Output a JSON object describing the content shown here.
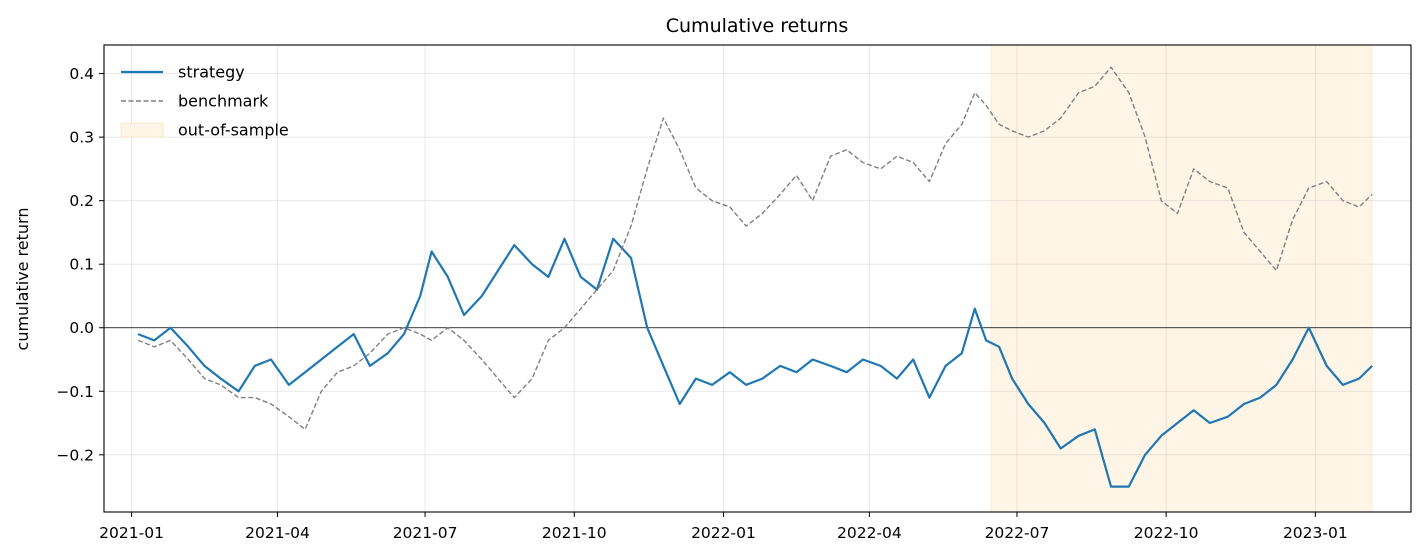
{
  "chart_data": {
    "type": "line",
    "title": "Cumulative returns",
    "xlabel": "",
    "ylabel": "cumulative return",
    "xlim": [
      "2020-12-15",
      "2023-03-01"
    ],
    "ylim": [
      -0.29,
      0.445
    ],
    "x_tick_labels": [
      "2021-01",
      "2021-04",
      "2021-07",
      "2021-10",
      "2022-01",
      "2022-04",
      "2022-07",
      "2022-10",
      "2023-01"
    ],
    "y_tick_labels": [
      "−0.2",
      "−0.1",
      "0.0",
      "0.1",
      "0.2",
      "0.3",
      "0.4"
    ],
    "grid": true,
    "legend_position": "top-left",
    "zero_line": true,
    "shaded_region": {
      "label": "out-of-sample",
      "start": "2022-06-15",
      "end": "2023-02-05",
      "color": "#fff5e6"
    },
    "series": [
      {
        "name": "strategy",
        "color": "#1f77b4",
        "style": "solid",
        "points": [
          [
            "2021-01-05",
            -0.01
          ],
          [
            "2021-01-15",
            -0.02
          ],
          [
            "2021-01-25",
            0.0
          ],
          [
            "2021-02-05",
            -0.03
          ],
          [
            "2021-02-15",
            -0.06
          ],
          [
            "2021-02-25",
            -0.08
          ],
          [
            "2021-03-08",
            -0.1
          ],
          [
            "2021-03-18",
            -0.06
          ],
          [
            "2021-03-28",
            -0.05
          ],
          [
            "2021-04-08",
            -0.09
          ],
          [
            "2021-04-18",
            -0.07
          ],
          [
            "2021-04-28",
            -0.05
          ],
          [
            "2021-05-08",
            -0.03
          ],
          [
            "2021-05-18",
            -0.01
          ],
          [
            "2021-05-28",
            -0.06
          ],
          [
            "2021-06-08",
            -0.04
          ],
          [
            "2021-06-18",
            -0.01
          ],
          [
            "2021-06-28",
            0.05
          ],
          [
            "2021-07-05",
            0.12
          ],
          [
            "2021-07-15",
            0.08
          ],
          [
            "2021-07-25",
            0.02
          ],
          [
            "2021-08-05",
            0.05
          ],
          [
            "2021-08-15",
            0.09
          ],
          [
            "2021-08-25",
            0.13
          ],
          [
            "2021-09-05",
            0.1
          ],
          [
            "2021-09-15",
            0.08
          ],
          [
            "2021-09-25",
            0.14
          ],
          [
            "2021-10-05",
            0.08
          ],
          [
            "2021-10-15",
            0.06
          ],
          [
            "2021-10-25",
            0.14
          ],
          [
            "2021-11-05",
            0.11
          ],
          [
            "2021-11-15",
            0.0
          ],
          [
            "2021-11-25",
            -0.06
          ],
          [
            "2021-12-05",
            -0.12
          ],
          [
            "2021-12-15",
            -0.08
          ],
          [
            "2021-12-25",
            -0.09
          ],
          [
            "2022-01-05",
            -0.07
          ],
          [
            "2022-01-15",
            -0.09
          ],
          [
            "2022-01-25",
            -0.08
          ],
          [
            "2022-02-05",
            -0.06
          ],
          [
            "2022-02-15",
            -0.07
          ],
          [
            "2022-02-25",
            -0.05
          ],
          [
            "2022-03-08",
            -0.06
          ],
          [
            "2022-03-18",
            -0.07
          ],
          [
            "2022-03-28",
            -0.05
          ],
          [
            "2022-04-08",
            -0.06
          ],
          [
            "2022-04-18",
            -0.08
          ],
          [
            "2022-04-28",
            -0.05
          ],
          [
            "2022-05-08",
            -0.11
          ],
          [
            "2022-05-18",
            -0.06
          ],
          [
            "2022-05-28",
            -0.04
          ],
          [
            "2022-06-05",
            0.03
          ],
          [
            "2022-06-12",
            -0.02
          ],
          [
            "2022-06-20",
            -0.03
          ],
          [
            "2022-06-28",
            -0.08
          ],
          [
            "2022-07-08",
            -0.12
          ],
          [
            "2022-07-18",
            -0.15
          ],
          [
            "2022-07-28",
            -0.19
          ],
          [
            "2022-08-08",
            -0.17
          ],
          [
            "2022-08-18",
            -0.16
          ],
          [
            "2022-08-28",
            -0.25
          ],
          [
            "2022-09-08",
            -0.25
          ],
          [
            "2022-09-18",
            -0.2
          ],
          [
            "2022-09-28",
            -0.17
          ],
          [
            "2022-10-08",
            -0.15
          ],
          [
            "2022-10-18",
            -0.13
          ],
          [
            "2022-10-28",
            -0.15
          ],
          [
            "2022-11-08",
            -0.14
          ],
          [
            "2022-11-18",
            -0.12
          ],
          [
            "2022-11-28",
            -0.11
          ],
          [
            "2022-12-08",
            -0.09
          ],
          [
            "2022-12-18",
            -0.05
          ],
          [
            "2022-12-28",
            0.0
          ],
          [
            "2023-01-08",
            -0.06
          ],
          [
            "2023-01-18",
            -0.09
          ],
          [
            "2023-01-28",
            -0.08
          ],
          [
            "2023-02-05",
            -0.06
          ]
        ]
      },
      {
        "name": "benchmark",
        "color": "#808080",
        "style": "dashed",
        "points": [
          [
            "2021-01-05",
            -0.02
          ],
          [
            "2021-01-15",
            -0.03
          ],
          [
            "2021-01-25",
            -0.02
          ],
          [
            "2021-02-05",
            -0.05
          ],
          [
            "2021-02-15",
            -0.08
          ],
          [
            "2021-02-25",
            -0.09
          ],
          [
            "2021-03-08",
            -0.11
          ],
          [
            "2021-03-18",
            -0.11
          ],
          [
            "2021-03-28",
            -0.12
          ],
          [
            "2021-04-08",
            -0.14
          ],
          [
            "2021-04-18",
            -0.16
          ],
          [
            "2021-04-28",
            -0.1
          ],
          [
            "2021-05-08",
            -0.07
          ],
          [
            "2021-05-18",
            -0.06
          ],
          [
            "2021-05-28",
            -0.04
          ],
          [
            "2021-06-08",
            -0.01
          ],
          [
            "2021-06-18",
            0.0
          ],
          [
            "2021-06-28",
            -0.01
          ],
          [
            "2021-07-05",
            -0.02
          ],
          [
            "2021-07-15",
            0.0
          ],
          [
            "2021-07-25",
            -0.02
          ],
          [
            "2021-08-05",
            -0.05
          ],
          [
            "2021-08-15",
            -0.08
          ],
          [
            "2021-08-25",
            -0.11
          ],
          [
            "2021-09-05",
            -0.08
          ],
          [
            "2021-09-15",
            -0.02
          ],
          [
            "2021-09-25",
            0.0
          ],
          [
            "2021-10-05",
            0.03
          ],
          [
            "2021-10-15",
            0.06
          ],
          [
            "2021-10-25",
            0.09
          ],
          [
            "2021-11-05",
            0.16
          ],
          [
            "2021-11-15",
            0.25
          ],
          [
            "2021-11-25",
            0.33
          ],
          [
            "2021-12-05",
            0.28
          ],
          [
            "2021-12-15",
            0.22
          ],
          [
            "2021-12-25",
            0.2
          ],
          [
            "2022-01-05",
            0.19
          ],
          [
            "2022-01-15",
            0.16
          ],
          [
            "2022-01-25",
            0.18
          ],
          [
            "2022-02-05",
            0.21
          ],
          [
            "2022-02-15",
            0.24
          ],
          [
            "2022-02-25",
            0.2
          ],
          [
            "2022-03-08",
            0.27
          ],
          [
            "2022-03-18",
            0.28
          ],
          [
            "2022-03-28",
            0.26
          ],
          [
            "2022-04-08",
            0.25
          ],
          [
            "2022-04-18",
            0.27
          ],
          [
            "2022-04-28",
            0.26
          ],
          [
            "2022-05-08",
            0.23
          ],
          [
            "2022-05-18",
            0.29
          ],
          [
            "2022-05-28",
            0.32
          ],
          [
            "2022-06-05",
            0.37
          ],
          [
            "2022-06-12",
            0.35
          ],
          [
            "2022-06-20",
            0.32
          ],
          [
            "2022-06-28",
            0.31
          ],
          [
            "2022-07-08",
            0.3
          ],
          [
            "2022-07-18",
            0.31
          ],
          [
            "2022-07-28",
            0.33
          ],
          [
            "2022-08-08",
            0.37
          ],
          [
            "2022-08-18",
            0.38
          ],
          [
            "2022-08-28",
            0.41
          ],
          [
            "2022-09-08",
            0.37
          ],
          [
            "2022-09-18",
            0.3
          ],
          [
            "2022-09-28",
            0.2
          ],
          [
            "2022-10-08",
            0.18
          ],
          [
            "2022-10-18",
            0.25
          ],
          [
            "2022-10-28",
            0.23
          ],
          [
            "2022-11-08",
            0.22
          ],
          [
            "2022-11-18",
            0.15
          ],
          [
            "2022-11-28",
            0.12
          ],
          [
            "2022-12-08",
            0.09
          ],
          [
            "2022-12-18",
            0.17
          ],
          [
            "2022-12-28",
            0.22
          ],
          [
            "2023-01-08",
            0.23
          ],
          [
            "2023-01-18",
            0.2
          ],
          [
            "2023-01-28",
            0.19
          ],
          [
            "2023-02-05",
            0.21
          ]
        ]
      }
    ]
  }
}
